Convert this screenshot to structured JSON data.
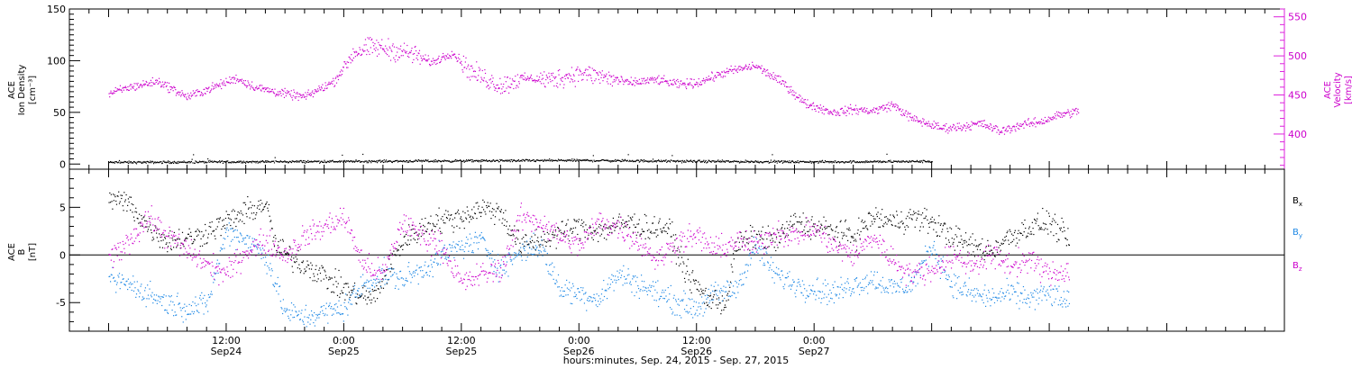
{
  "chart_data": [
    {
      "type": "scatter",
      "panel": "top",
      "left_axis": {
        "label_lines": [
          "ACE",
          "Ion Density",
          "[cm⁻³]"
        ],
        "ticks": [
          0,
          50,
          100,
          150
        ],
        "ylim": [
          -5,
          150
        ]
      },
      "right_axis": {
        "label_lines": [
          "ACE",
          "Velocity",
          "[km/s]"
        ],
        "ticks": [
          400,
          450,
          500,
          550
        ],
        "ylim": [
          355,
          560
        ]
      },
      "series": [
        {
          "axis": "left",
          "color": "#000000",
          "points": [
            [
              0,
              2
            ],
            [
              12,
              2.5
            ],
            [
              24,
              3
            ],
            [
              36,
              3.5
            ],
            [
              48,
              4
            ],
            [
              60,
              3
            ],
            [
              72,
              2.5
            ],
            [
              84,
              3
            ]
          ]
        },
        {
          "axis": "right",
          "color": "#cc00cc",
          "points": [
            [
              0,
              452
            ],
            [
              2,
              460
            ],
            [
              5,
              468
            ],
            [
              8,
              448
            ],
            [
              11,
              462
            ],
            [
              13,
              472
            ],
            [
              15,
              460
            ],
            [
              18,
              452
            ],
            [
              20,
              448
            ],
            [
              23,
              468
            ],
            [
              25,
              505
            ],
            [
              27,
              512
            ],
            [
              29,
              508
            ],
            [
              31,
              503
            ],
            [
              33,
              492
            ],
            [
              35,
              505
            ],
            [
              37,
              480
            ],
            [
              40,
              462
            ],
            [
              42,
              472
            ],
            [
              45,
              470
            ],
            [
              48,
              478
            ],
            [
              50,
              475
            ],
            [
              53,
              466
            ],
            [
              56,
              470
            ],
            [
              58,
              464
            ],
            [
              60,
              466
            ],
            [
              63,
              480
            ],
            [
              66,
              488
            ],
            [
              69,
              464
            ],
            [
              71,
              440
            ],
            [
              74,
              428
            ],
            [
              76,
              432
            ],
            [
              78,
              430
            ],
            [
              80,
              438
            ],
            [
              82,
              420
            ],
            [
              85,
              408
            ],
            [
              87,
              410
            ],
            [
              89,
              414
            ],
            [
              91,
              404
            ],
            [
              93,
              412
            ],
            [
              95,
              416
            ],
            [
              97,
              425
            ],
            [
              99,
              430
            ]
          ]
        }
      ],
      "xlim": [
        -4,
        120
      ]
    },
    {
      "type": "scatter",
      "panel": "bottom",
      "left_axis": {
        "label_lines": [
          "ACE",
          "B",
          "[nT]"
        ],
        "ticks": [
          -5,
          0,
          5
        ],
        "ylim": [
          -8,
          9
        ]
      },
      "legend": [
        {
          "name": "Bx",
          "main": "B",
          "sub": "x",
          "color": "#000000"
        },
        {
          "name": "By",
          "main": "B",
          "sub": "y",
          "color": "#1e88e5"
        },
        {
          "name": "Bz",
          "main": "B",
          "sub": "z",
          "color": "#cc00cc"
        }
      ],
      "series": [
        {
          "name": "Bx",
          "color": "#000000",
          "points": [
            [
              0,
              6
            ],
            [
              2,
              5.5
            ],
            [
              4,
              3
            ],
            [
              6,
              1.5
            ],
            [
              9,
              2
            ],
            [
              12,
              3.5
            ],
            [
              14,
              4.5
            ],
            [
              16,
              5.5
            ],
            [
              17,
              1
            ],
            [
              19,
              -0.5
            ],
            [
              21,
              -1.5
            ],
            [
              23,
              -3
            ],
            [
              25,
              -4
            ],
            [
              27,
              -4.5
            ],
            [
              30,
              1.5
            ],
            [
              33,
              3.5
            ],
            [
              36,
              4
            ],
            [
              38,
              5
            ],
            [
              40,
              4.5
            ],
            [
              42,
              1
            ],
            [
              45,
              2
            ],
            [
              48,
              3
            ],
            [
              50,
              2.5
            ],
            [
              53,
              3.5
            ],
            [
              55,
              2.8
            ],
            [
              57,
              3
            ],
            [
              59,
              -2
            ],
            [
              61,
              -4.5
            ],
            [
              63,
              -5
            ],
            [
              64,
              1
            ],
            [
              66,
              2
            ],
            [
              68,
              1.5
            ],
            [
              70,
              3.5
            ],
            [
              72,
              3
            ],
            [
              74,
              2.5
            ],
            [
              76,
              2
            ],
            [
              78,
              4
            ],
            [
              80,
              3.5
            ],
            [
              82,
              4
            ],
            [
              84,
              3.5
            ],
            [
              86,
              2
            ],
            [
              88,
              1
            ],
            [
              90,
              0.5
            ],
            [
              92,
              2
            ],
            [
              94,
              3
            ],
            [
              96,
              3.5
            ],
            [
              98,
              1.5
            ]
          ]
        },
        {
          "name": "By",
          "color": "#1e88e5",
          "points": [
            [
              0,
              -2.5
            ],
            [
              2,
              -3
            ],
            [
              4,
              -4
            ],
            [
              6,
              -5
            ],
            [
              8,
              -5.5
            ],
            [
              10,
              -5.2
            ],
            [
              12,
              2.5
            ],
            [
              14,
              1.8
            ],
            [
              16,
              0
            ],
            [
              18,
              -6
            ],
            [
              20,
              -6.5
            ],
            [
              22,
              -6
            ],
            [
              24,
              -5.5
            ],
            [
              26,
              -3
            ],
            [
              28,
              -2
            ],
            [
              30,
              -2.5
            ],
            [
              32,
              -1.5
            ],
            [
              34,
              0
            ],
            [
              36,
              1
            ],
            [
              38,
              1.5
            ],
            [
              40,
              -1.5
            ],
            [
              42,
              0.5
            ],
            [
              44,
              1
            ],
            [
              46,
              -3.5
            ],
            [
              48,
              -4
            ],
            [
              50,
              -4.5
            ],
            [
              52,
              -2
            ],
            [
              54,
              -3
            ],
            [
              56,
              -4
            ],
            [
              58,
              -5
            ],
            [
              60,
              -5.5
            ],
            [
              62,
              -4
            ],
            [
              64,
              -3.5
            ],
            [
              66,
              1
            ],
            [
              68,
              -2
            ],
            [
              70,
              -3
            ],
            [
              72,
              -3.5
            ],
            [
              74,
              -4
            ],
            [
              76,
              -3
            ],
            [
              78,
              -2.5
            ],
            [
              80,
              -3.5
            ],
            [
              82,
              -3
            ],
            [
              84,
              1
            ],
            [
              86,
              -3
            ],
            [
              88,
              -4
            ],
            [
              90,
              -4.5
            ],
            [
              92,
              -4
            ],
            [
              94,
              -4.5
            ],
            [
              96,
              -4
            ],
            [
              98,
              -5
            ]
          ]
        },
        {
          "name": "Bz",
          "color": "#cc00cc",
          "points": [
            [
              0,
              -0.5
            ],
            [
              2,
              1.5
            ],
            [
              4,
              4
            ],
            [
              6,
              2
            ],
            [
              8,
              0.5
            ],
            [
              10,
              -1
            ],
            [
              12,
              -2
            ],
            [
              14,
              0.5
            ],
            [
              16,
              1.5
            ],
            [
              18,
              0
            ],
            [
              20,
              2
            ],
            [
              22,
              3
            ],
            [
              24,
              4
            ],
            [
              26,
              -1
            ],
            [
              28,
              -2
            ],
            [
              30,
              3.5
            ],
            [
              32,
              2
            ],
            [
              34,
              1
            ],
            [
              36,
              -3
            ],
            [
              38,
              -2
            ],
            [
              40,
              -1.5
            ],
            [
              42,
              4
            ],
            [
              44,
              3.5
            ],
            [
              46,
              2
            ],
            [
              48,
              1
            ],
            [
              50,
              3.5
            ],
            [
              52,
              3
            ],
            [
              54,
              1.5
            ],
            [
              56,
              -0.5
            ],
            [
              58,
              1.5
            ],
            [
              60,
              2
            ],
            [
              62,
              0.5
            ],
            [
              64,
              1.5
            ],
            [
              66,
              1
            ],
            [
              68,
              2.5
            ],
            [
              70,
              2
            ],
            [
              72,
              2.8
            ],
            [
              74,
              1
            ],
            [
              76,
              0
            ],
            [
              78,
              2
            ],
            [
              80,
              -0.5
            ],
            [
              82,
              -2
            ],
            [
              84,
              -1.5
            ],
            [
              86,
              0
            ],
            [
              88,
              -1
            ],
            [
              90,
              0
            ],
            [
              92,
              -1
            ],
            [
              94,
              -0.5
            ],
            [
              96,
              -2
            ],
            [
              98,
              -1.5
            ]
          ]
        }
      ],
      "xlim": [
        -4,
        120
      ]
    }
  ],
  "x_axis": {
    "major_ticks": [
      {
        "x": 12,
        "time": "12:00",
        "date": "Sep24"
      },
      {
        "x": 24,
        "time": "0:00",
        "date": "Sep25"
      },
      {
        "x": 36,
        "time": "12:00",
        "date": "Sep25"
      },
      {
        "x": 48,
        "time": "0:00",
        "date": "Sep26"
      },
      {
        "x": 60,
        "time": "12:00",
        "date": "Sep26"
      },
      {
        "x": 72,
        "time": "0:00",
        "date": "Sep27"
      }
    ],
    "title": "hours:minutes, Sep. 24, 2015 - Sep. 27, 2015"
  }
}
